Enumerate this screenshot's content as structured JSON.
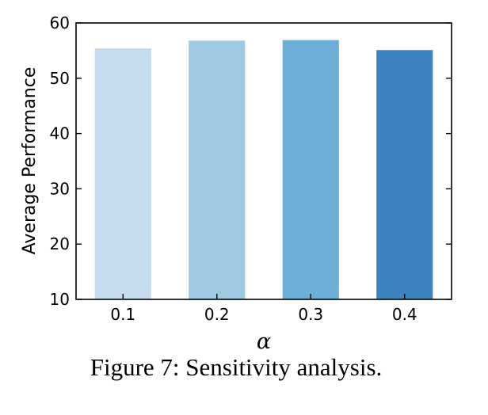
{
  "chart_data": {
    "type": "bar",
    "categories": [
      "0.1",
      "0.2",
      "0.3",
      "0.4"
    ],
    "values": [
      55.4,
      56.8,
      56.9,
      55.1
    ],
    "colors": [
      "#c6dbee",
      "#9ecae1",
      "#6baed6",
      "#3a83be"
    ],
    "xlabel": "α",
    "ylabel": "Average Performance",
    "ylim": [
      10,
      60
    ],
    "yticks": [
      "10",
      "20",
      "30",
      "40",
      "50",
      "60"
    ],
    "grid": false
  },
  "caption": "Figure 7: Sensitivity analysis."
}
